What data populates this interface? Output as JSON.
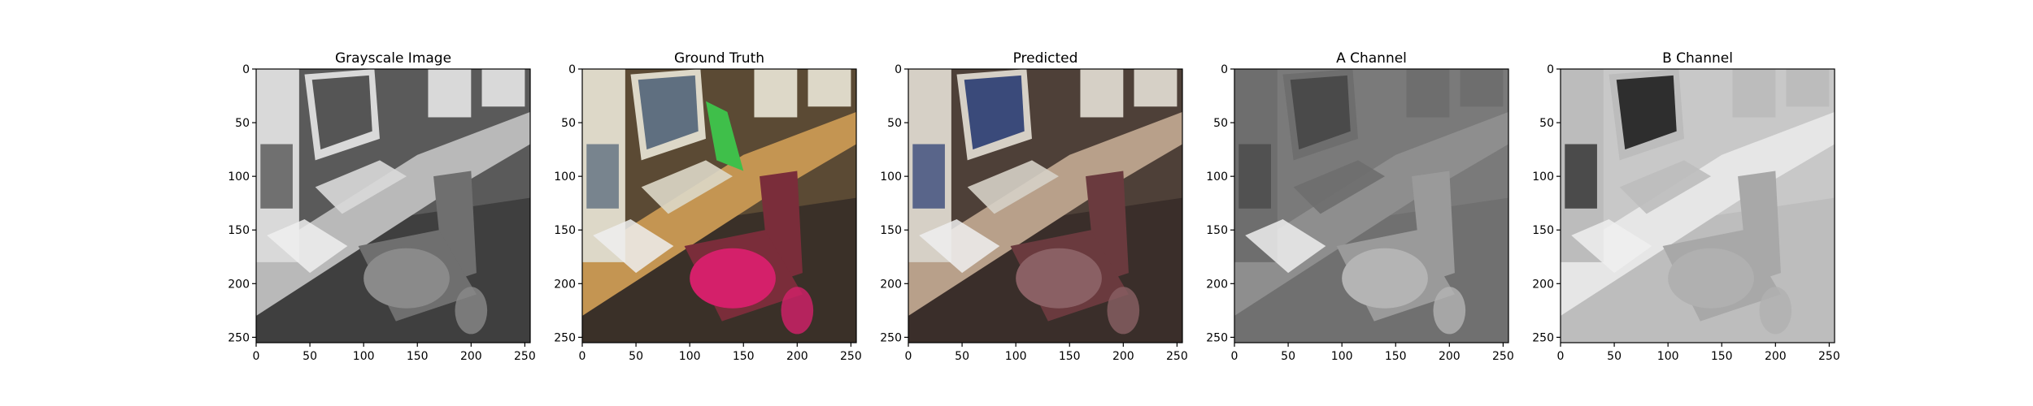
{
  "chart_data": [
    {
      "type": "image",
      "title": "Grayscale Image",
      "xlim": [
        0,
        255
      ],
      "ylim": [
        255,
        0
      ],
      "xticks": [
        "0",
        "50",
        "100",
        "150",
        "200",
        "250"
      ],
      "yticks": [
        "0",
        "50",
        "100",
        "150",
        "200",
        "250"
      ],
      "colormap": "gray",
      "scene": "desk-computer-chair",
      "colors": {
        "bg": "#5a5a5a",
        "desk": "#b9b9b9",
        "monitor": "#d9d9d9",
        "screen": "#555555",
        "chair": "#6f6f6f",
        "bag": "#8a8a8a",
        "floor": "#3f3f3f"
      }
    },
    {
      "type": "image",
      "title": "Ground Truth",
      "xlim": [
        0,
        255
      ],
      "ylim": [
        255,
        0
      ],
      "xticks": [
        "0",
        "50",
        "100",
        "150",
        "200",
        "250"
      ],
      "yticks": [
        "0",
        "50",
        "100",
        "150",
        "200",
        "250"
      ],
      "colormap": "rgb",
      "scene": "desk-computer-chair",
      "colors": {
        "bg": "#5b4a34",
        "desk": "#c49552",
        "monitor": "#ddd8c8",
        "screen": "#5f6f80",
        "chair": "#7a2d3a",
        "bag": "#d4206a",
        "floor": "#3a3028",
        "folder": "#3fbf4a"
      }
    },
    {
      "type": "image",
      "title": "Predicted",
      "xlim": [
        0,
        255
      ],
      "ylim": [
        255,
        0
      ],
      "xticks": [
        "0",
        "50",
        "100",
        "150",
        "200",
        "250"
      ],
      "yticks": [
        "0",
        "50",
        "100",
        "150",
        "200",
        "250"
      ],
      "colormap": "rgb",
      "scene": "desk-computer-chair",
      "colors": {
        "bg": "#4e4038",
        "desk": "#b8a08a",
        "monitor": "#d6d0c6",
        "screen": "#3a4a7a",
        "chair": "#6a3a3e",
        "bag": "#8a6064",
        "floor": "#3a2e2a"
      }
    },
    {
      "type": "image",
      "title": "A Channel",
      "xlim": [
        0,
        255
      ],
      "ylim": [
        255,
        0
      ],
      "xticks": [
        "0",
        "50",
        "100",
        "150",
        "200",
        "250"
      ],
      "yticks": [
        "0",
        "50",
        "100",
        "150",
        "200",
        "250"
      ],
      "colormap": "gray",
      "scene": "desk-computer-chair",
      "colors": {
        "bg": "#7a7a7a",
        "desk": "#8e8e8e",
        "monitor": "#6e6e6e",
        "screen": "#4a4a4a",
        "chair": "#9a9a9a",
        "bag": "#b4b4b4",
        "floor": "#707070"
      }
    },
    {
      "type": "image",
      "title": "B Channel",
      "xlim": [
        0,
        255
      ],
      "ylim": [
        255,
        0
      ],
      "xticks": [
        "0",
        "50",
        "100",
        "150",
        "200",
        "250"
      ],
      "yticks": [
        "0",
        "50",
        "100",
        "150",
        "200",
        "250"
      ],
      "colormap": "gray",
      "scene": "desk-computer-chair",
      "colors": {
        "bg": "#c8c8c8",
        "desk": "#e6e6e6",
        "monitor": "#bcbcbc",
        "screen": "#2e2e2e",
        "chair": "#a8a8a8",
        "bag": "#b0b0b0",
        "floor": "#bdbdbd"
      }
    }
  ]
}
